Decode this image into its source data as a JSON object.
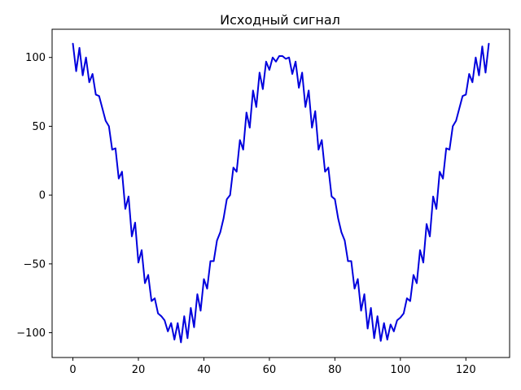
{
  "chart_data": {
    "type": "line",
    "title": "Исходный сигнал",
    "xlabel": "",
    "ylabel": "",
    "xlim": [
      -6.35,
      133.35
    ],
    "ylim": [
      -118,
      120.5
    ],
    "grid": false,
    "x_ticks": [
      0,
      20,
      40,
      60,
      80,
      100,
      120
    ],
    "y_ticks": [
      -100,
      -50,
      0,
      50,
      100
    ],
    "series": [
      {
        "color": "#0000dd",
        "x": [
          0,
          1,
          2,
          3,
          4,
          5,
          6,
          7,
          8,
          9,
          10,
          11,
          12,
          13,
          14,
          15,
          16,
          17,
          18,
          19,
          20,
          21,
          22,
          23,
          24,
          25,
          26,
          27,
          28,
          29,
          30,
          31,
          32,
          33,
          34,
          35,
          36,
          37,
          38,
          39,
          40,
          41,
          42,
          43,
          44,
          45,
          46,
          47,
          48,
          49,
          50,
          51,
          52,
          53,
          54,
          55,
          56,
          57,
          58,
          59,
          60,
          61,
          62,
          63,
          64,
          65,
          66,
          67,
          68,
          69,
          70,
          71,
          72,
          73,
          74,
          75,
          76,
          77,
          78,
          79,
          80,
          81,
          82,
          83,
          84,
          85,
          86,
          87,
          88,
          89,
          90,
          91,
          92,
          93,
          94,
          95,
          96,
          97,
          98,
          99,
          100,
          101,
          102,
          103,
          104,
          105,
          106,
          107,
          108,
          109,
          110,
          111,
          112,
          113,
          114,
          115,
          116,
          117,
          118,
          119,
          120,
          121,
          122,
          123,
          124,
          125,
          126,
          127
        ],
        "values": [
          110,
          90,
          107,
          87,
          100,
          82,
          88,
          73,
          72,
          63,
          54,
          50,
          33,
          34,
          12,
          17,
          -10,
          -1,
          -30,
          -20,
          -49,
          -40,
          -64,
          -58,
          -77,
          -75,
          -86,
          -88,
          -91,
          -99,
          -93,
          -105,
          -93,
          -107,
          -88,
          -104,
          -82,
          -96,
          -72,
          -84,
          -61,
          -68,
          -48,
          -48,
          -33,
          -27,
          -17,
          -3,
          0,
          20,
          17,
          40,
          33,
          60,
          49,
          76,
          64,
          89,
          77,
          97,
          91,
          100,
          97,
          101,
          101,
          99,
          100,
          88,
          97,
          78,
          89,
          64,
          76,
          49,
          61,
          33,
          40,
          17,
          20,
          -1,
          -3,
          -17,
          -27,
          -33,
          -48,
          -48,
          -68,
          -61,
          -84,
          -72,
          -97,
          -82,
          -104,
          -88,
          -106,
          -93,
          -105,
          -94,
          -99,
          -91,
          -89,
          -86,
          -75,
          -77,
          -58,
          -64,
          -40,
          -49,
          -21,
          -30,
          -1,
          -10,
          17,
          12,
          34,
          33,
          50,
          54,
          63,
          72,
          73,
          88,
          82,
          100,
          87,
          108,
          89,
          110
        ]
      }
    ]
  }
}
